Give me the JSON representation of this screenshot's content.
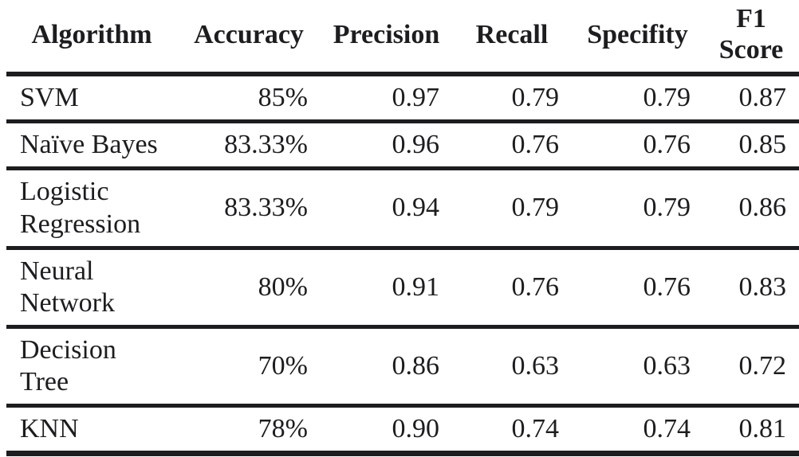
{
  "colors": {
    "text": "#1d1d1f",
    "rule": "#1d1d1f",
    "background": "#ffffff"
  },
  "table": {
    "columns": [
      {
        "key": "algorithm",
        "label": "Algorithm"
      },
      {
        "key": "accuracy",
        "label": "Accuracy"
      },
      {
        "key": "precision",
        "label": "Precision"
      },
      {
        "key": "recall",
        "label": "Recall"
      },
      {
        "key": "specifity",
        "label": "Specifity"
      },
      {
        "key": "f1",
        "label": "F1\nScore"
      }
    ],
    "rows": [
      {
        "algorithm": "SVM",
        "accuracy": "85%",
        "precision": "0.97",
        "recall": "0.79",
        "specifity": "0.79",
        "f1": "0.87"
      },
      {
        "algorithm": "Naïve Bayes",
        "accuracy": "83.33%",
        "precision": "0.96",
        "recall": "0.76",
        "specifity": "0.76",
        "f1": "0.85"
      },
      {
        "algorithm": "Logistic\nRegression",
        "accuracy": "83.33%",
        "precision": "0.94",
        "recall": "0.79",
        "specifity": "0.79",
        "f1": "0.86"
      },
      {
        "algorithm": "Neural\nNetwork",
        "accuracy": "80%",
        "precision": "0.91",
        "recall": "0.76",
        "specifity": "0.76",
        "f1": "0.83"
      },
      {
        "algorithm": "Decision\nTree",
        "accuracy": "70%",
        "precision": "0.86",
        "recall": "0.63",
        "specifity": "0.63",
        "f1": "0.72"
      },
      {
        "algorithm": "KNN",
        "accuracy": "78%",
        "precision": "0.90",
        "recall": "0.74",
        "specifity": "0.74",
        "f1": "0.81"
      }
    ]
  },
  "chart_data": {
    "type": "table",
    "columns": [
      "Algorithm",
      "Accuracy",
      "Precision",
      "Recall",
      "Specifity",
      "F1 Score"
    ],
    "rows": [
      [
        "SVM",
        "85%",
        0.97,
        0.79,
        0.79,
        0.87
      ],
      [
        "Naïve Bayes",
        "83.33%",
        0.96,
        0.76,
        0.76,
        0.85
      ],
      [
        "Logistic Regression",
        "83.33%",
        0.94,
        0.79,
        0.79,
        0.86
      ],
      [
        "Neural Network",
        "80%",
        0.91,
        0.76,
        0.76,
        0.83
      ],
      [
        "Decision Tree",
        "70%",
        0.86,
        0.63,
        0.63,
        0.72
      ],
      [
        "KNN",
        "78%",
        0.9,
        0.74,
        0.74,
        0.81
      ]
    ]
  }
}
